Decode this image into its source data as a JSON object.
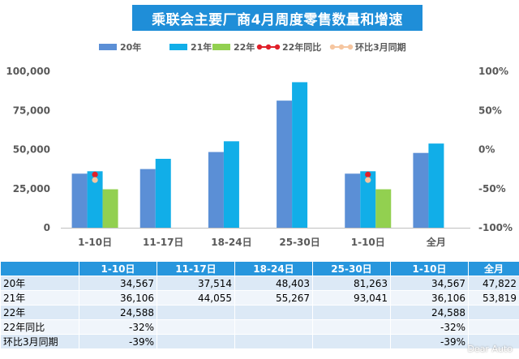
{
  "chart_data": {
    "type": "bar",
    "title": "乘联会主要厂商4月周度零售数量和增速",
    "categories": [
      "1-10日",
      "11-17日",
      "18-24日",
      "25-30日",
      "1-10日",
      "全月"
    ],
    "series": [
      {
        "name": "20年",
        "color": "#5b8fd6",
        "values": [
          34567,
          37514,
          48403,
          81263,
          34567,
          47822
        ]
      },
      {
        "name": "21年",
        "color": "#11aee8",
        "values": [
          36106,
          44055,
          55267,
          93041,
          36106,
          53819
        ]
      },
      {
        "name": "22年",
        "color": "#92d050",
        "values": [
          24588,
          null,
          null,
          null,
          24588,
          null
        ]
      },
      {
        "name": "22年同比",
        "type": "line",
        "axis": "right",
        "color": "#e0202a",
        "values": [
          -32,
          null,
          null,
          null,
          -32,
          null
        ]
      },
      {
        "name": "环比3月同期",
        "type": "line",
        "axis": "right",
        "color": "#f6c6a0",
        "values": [
          -39,
          null,
          null,
          null,
          -39,
          null
        ]
      }
    ],
    "y_left": {
      "min": 0,
      "max": 100000,
      "ticks": [
        "0",
        "25,000",
        "50,000",
        "75,000",
        "100,000"
      ]
    },
    "y_right": {
      "min": -100,
      "max": 100,
      "ticks": [
        "-100%",
        "-50%",
        "0%",
        "50%",
        "100%"
      ]
    },
    "legend_position": "top",
    "grid": false
  },
  "table": {
    "headers": [
      "1-10日",
      "11-17日",
      "18-24日",
      "25-30日",
      "1-10日",
      "全月"
    ],
    "rows": [
      {
        "label": "20年",
        "cells": [
          "34,567",
          "37,514",
          "48,403",
          "81,263",
          "34,567",
          "47,822"
        ]
      },
      {
        "label": "21年",
        "cells": [
          "36,106",
          "44,055",
          "55,267",
          "93,041",
          "36,106",
          "53,819"
        ]
      },
      {
        "label": "22年",
        "cells": [
          "24,588",
          "",
          "",
          "",
          "24,588",
          ""
        ]
      },
      {
        "label": "22年同比",
        "cells": [
          "-32%",
          "",
          "",
          "",
          "-32%",
          ""
        ]
      },
      {
        "label": "环比3月同期",
        "cells": [
          "-39%",
          "",
          "",
          "",
          "-39%",
          ""
        ]
      }
    ]
  },
  "watermark": "Dear Auto"
}
